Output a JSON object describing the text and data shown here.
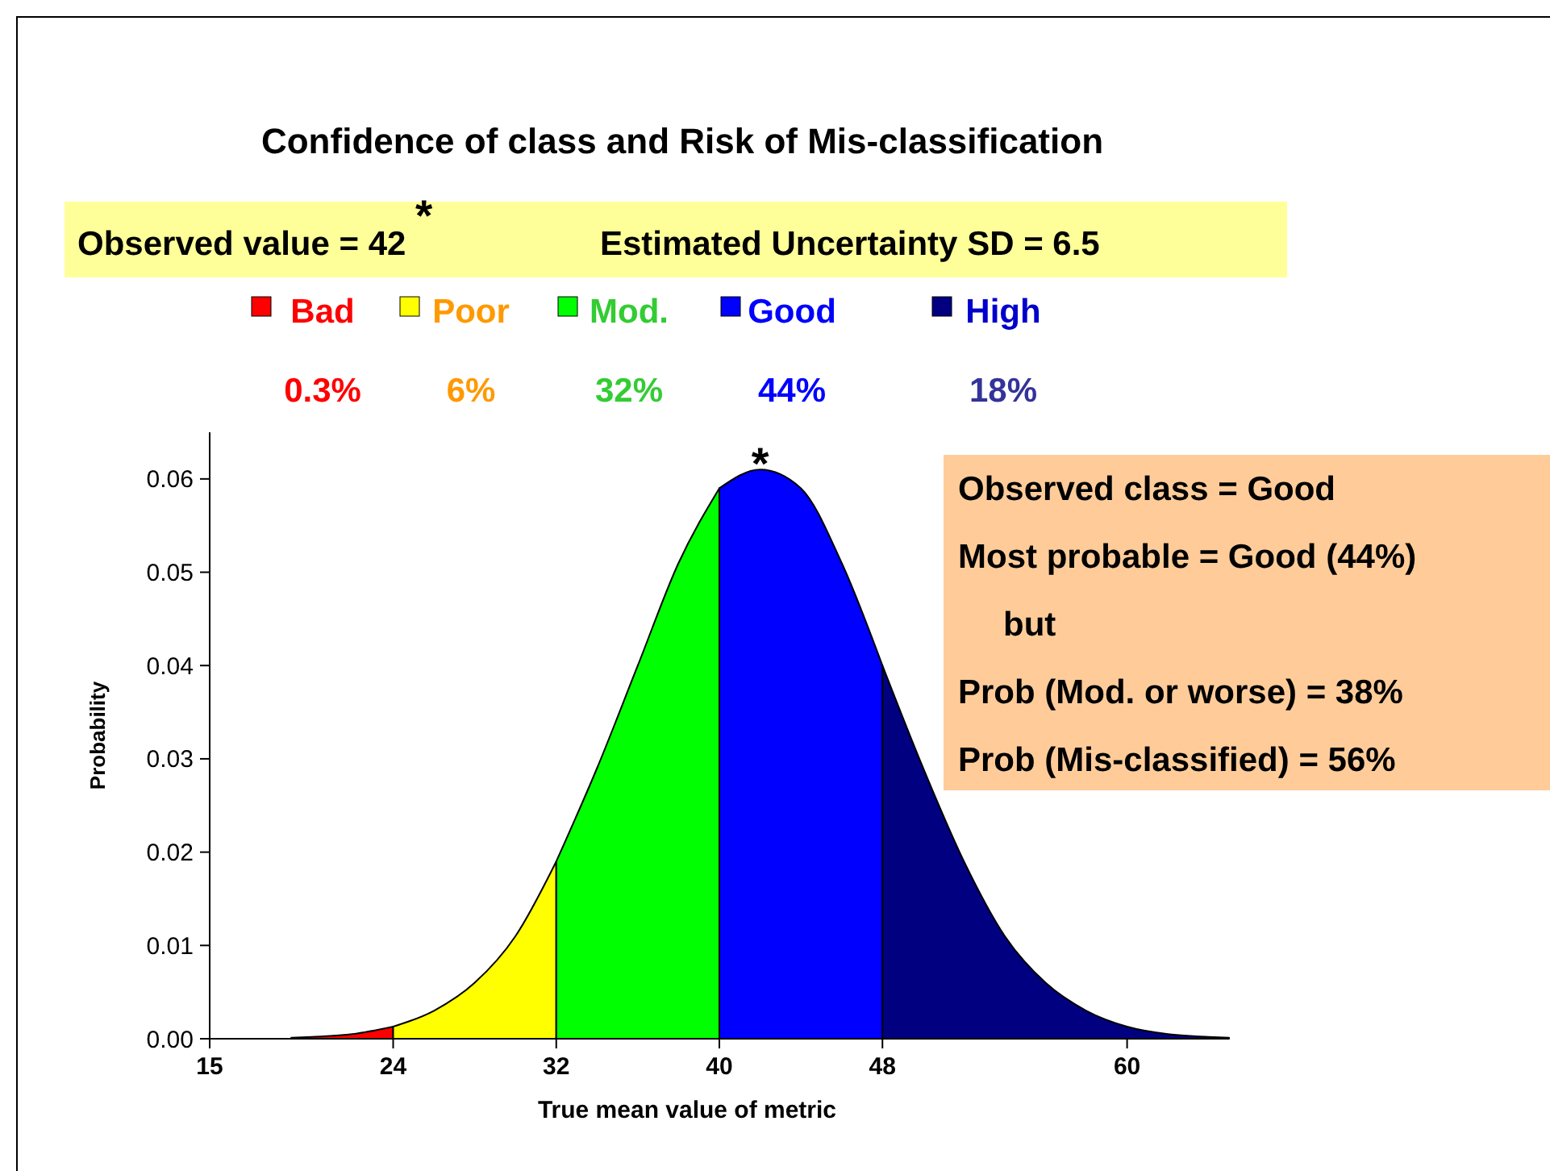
{
  "chart_data": {
    "type": "area",
    "title": "Confidence of class and Risk of Mis-classification",
    "xlabel": "True mean value of metric",
    "ylabel": "Probability",
    "xlim": [
      15,
      65
    ],
    "xticks": [
      15,
      24,
      32,
      40,
      48,
      60
    ],
    "ylim": [
      0,
      0.065
    ],
    "yticks": [
      {
        "value": 0,
        "label": "0.00"
      },
      0.01,
      0.02,
      0.03,
      0.04,
      0.05,
      0.06
    ],
    "grid": false,
    "legend": "top",
    "series": [
      {
        "name": "Bad",
        "color": "#ff0000",
        "x": [
          19,
          20,
          22,
          24
        ],
        "values": [
          0.0001,
          0.0002,
          0.0005,
          0.0013
        ]
      },
      {
        "name": "Poor",
        "color": "#ffff00",
        "x": [
          24,
          26,
          28,
          30,
          32
        ],
        "values": [
          0.0013,
          0.003,
          0.006,
          0.011,
          0.019
        ]
      },
      {
        "name": "Mod.",
        "color": "#00ff00",
        "x": [
          32,
          34,
          36,
          38,
          40
        ],
        "values": [
          0.019,
          0.029,
          0.04,
          0.051,
          0.059
        ]
      },
      {
        "name": "Good",
        "color": "#0000ff",
        "x": [
          40,
          42,
          44,
          46,
          48
        ],
        "values": [
          0.059,
          0.061,
          0.059,
          0.051,
          0.04
        ]
      },
      {
        "name": "High",
        "color": "#000080",
        "x": [
          48,
          50,
          52,
          54,
          56,
          58,
          60,
          62,
          64,
          65
        ],
        "values": [
          0.04,
          0.029,
          0.019,
          0.011,
          0.006,
          0.003,
          0.0013,
          0.0005,
          0.0002,
          0.0001
        ]
      }
    ],
    "annotations": [
      "Observed value = 42 $^{*}$",
      "Estimated Uncertainty SD  =  6.5",
      "0.3%",
      "6%",
      "32%",
      "44%",
      "18%",
      "Observed class = Good",
      "Most probable = Good (44%)",
      "but",
      "Prob (Mod. or worse) = 38%",
      "Prob (Mis-classified)  = 56%",
      {
        "text": "*",
        "x": 42,
        "y": 0.061
      }
    ]
  }
}
